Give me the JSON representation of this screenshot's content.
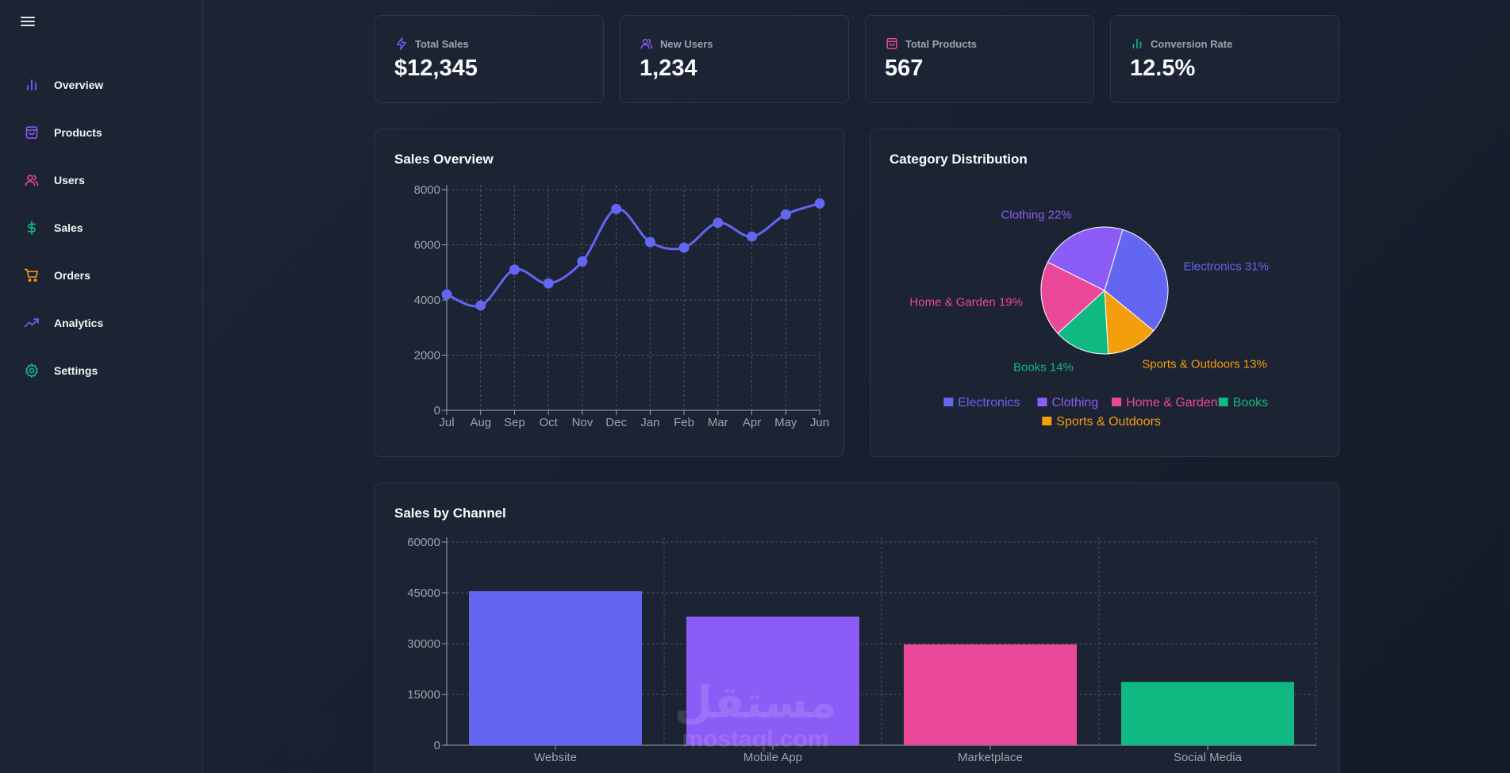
{
  "sidebar": {
    "items": [
      {
        "label": "Overview",
        "icon": "bar-chart-icon",
        "color": "#6366f1"
      },
      {
        "label": "Products",
        "icon": "shopping-bag-icon",
        "color": "#8b5cf6"
      },
      {
        "label": "Users",
        "icon": "users-icon",
        "color": "#ec4899"
      },
      {
        "label": "Sales",
        "icon": "dollar-icon",
        "color": "#10b981"
      },
      {
        "label": "Orders",
        "icon": "cart-icon",
        "color": "#f59e0b"
      },
      {
        "label": "Analytics",
        "icon": "trending-up-icon",
        "color": "#6366f1"
      },
      {
        "label": "Settings",
        "icon": "gear-icon",
        "color": "#14b8a6"
      }
    ]
  },
  "stats": [
    {
      "title": "Total Sales",
      "value": "$12,345",
      "icon": "lightning-icon",
      "color": "#6366f1"
    },
    {
      "title": "New Users",
      "value": "1,234",
      "icon": "users-icon",
      "color": "#8b5cf6"
    },
    {
      "title": "Total Products",
      "value": "567",
      "icon": "shopping-bag-icon",
      "color": "#ec4899"
    },
    {
      "title": "Conversion Rate",
      "value": "12.5%",
      "icon": "bar-chart-icon",
      "color": "#10b981"
    }
  ],
  "panels": {
    "sales_overview_title": "Sales Overview",
    "category_title": "Category Distribution",
    "channel_title": "Sales by Channel"
  },
  "watermark": {
    "text_arabic": "مستقل",
    "text_latin": "mostaql.com"
  },
  "colors": {
    "accent": "#6366f1",
    "purple": "#8b5cf6",
    "pink": "#ec4899",
    "green": "#10b981",
    "amber": "#f59e0b"
  },
  "chart_data": [
    {
      "type": "line",
      "title": "Sales Overview",
      "categories": [
        "Jul",
        "Aug",
        "Sep",
        "Oct",
        "Nov",
        "Dec",
        "Jan",
        "Feb",
        "Mar",
        "Apr",
        "May",
        "Jun"
      ],
      "series": [
        {
          "values": [
            4200,
            3800,
            5100,
            4600,
            5400,
            7300,
            6100,
            5900,
            6800,
            6300,
            7100,
            7500
          ]
        }
      ],
      "ylim": [
        0,
        8000
      ],
      "yticks": [
        0,
        2000,
        4000,
        6000,
        8000
      ],
      "grid": true,
      "color": "#6366f1"
    },
    {
      "type": "pie",
      "title": "Category Distribution",
      "slices": [
        {
          "label": "Electronics",
          "value": 31,
          "color": "#6366f1"
        },
        {
          "label": "Sports & Outdoors",
          "value": 13,
          "color": "#f59e0b"
        },
        {
          "label": "Books",
          "value": 14,
          "color": "#10b981"
        },
        {
          "label": "Home & Garden",
          "value": 19,
          "color": "#ec4899"
        },
        {
          "label": "Clothing",
          "value": 22,
          "color": "#8b5cf6"
        }
      ],
      "legend": [
        "Electronics",
        "Clothing",
        "Home & Garden",
        "Books",
        "Sports & Outdoors"
      ],
      "legend_placement": "bottom"
    },
    {
      "type": "bar",
      "title": "Sales by Channel",
      "categories": [
        "Website",
        "Mobile App",
        "Marketplace",
        "Social Media"
      ],
      "values": [
        45500,
        38000,
        29800,
        18700
      ],
      "colors": [
        "#6366f1",
        "#8b5cf6",
        "#ec4899",
        "#10b981"
      ],
      "ylim": [
        0,
        60000
      ],
      "yticks": [
        0,
        15000,
        30000,
        45000,
        60000
      ],
      "grid": true
    }
  ]
}
